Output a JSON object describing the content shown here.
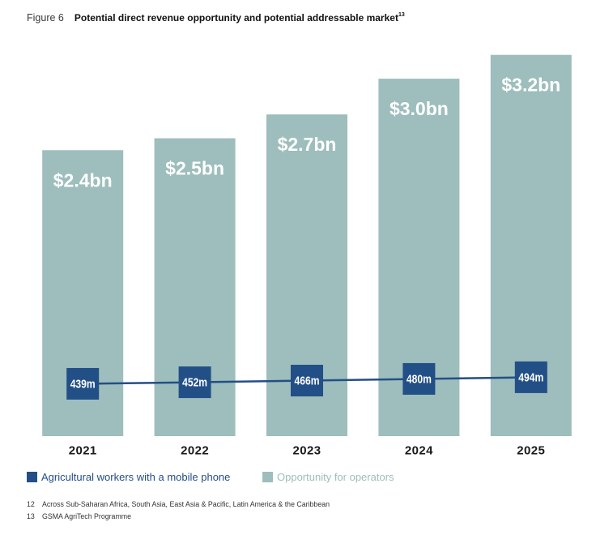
{
  "figure": {
    "label": "Figure 6",
    "title_ref": "13"
  },
  "chart_data": {
    "type": "bar",
    "title": "Potential direct revenue opportunity and potential addressable market",
    "xlabel": "",
    "ylabel": "",
    "categories": [
      "2021",
      "2022",
      "2023",
      "2024",
      "2025"
    ],
    "series": [
      {
        "name": "Opportunity for operators",
        "type": "bar",
        "values": [
          2.4,
          2.5,
          2.7,
          3.0,
          3.2
        ],
        "labels": [
          "$2.4bn",
          "$2.5bn",
          "$2.7bn",
          "$3.0bn",
          "$3.2bn"
        ],
        "color": "#9dbebc"
      },
      {
        "name": "Agricultural workers with a mobile phone",
        "type": "line",
        "values": [
          439,
          452,
          466,
          480,
          494
        ],
        "labels": [
          "439m",
          "452m",
          "466m",
          "480m",
          "494m"
        ],
        "color": "#234f87"
      }
    ],
    "ylim": [
      0,
      3.3
    ],
    "y2lim": [
      0,
      3300
    ],
    "grid": false,
    "legend": "bottom-left"
  },
  "footnotes": [
    {
      "num": "12",
      "text": "Across Sub-Saharan Africa, South Asia, East Asia & Pacific, Latin America & the Caribbean"
    },
    {
      "num": "13",
      "text": "GSMA AgriTech Programme"
    }
  ]
}
